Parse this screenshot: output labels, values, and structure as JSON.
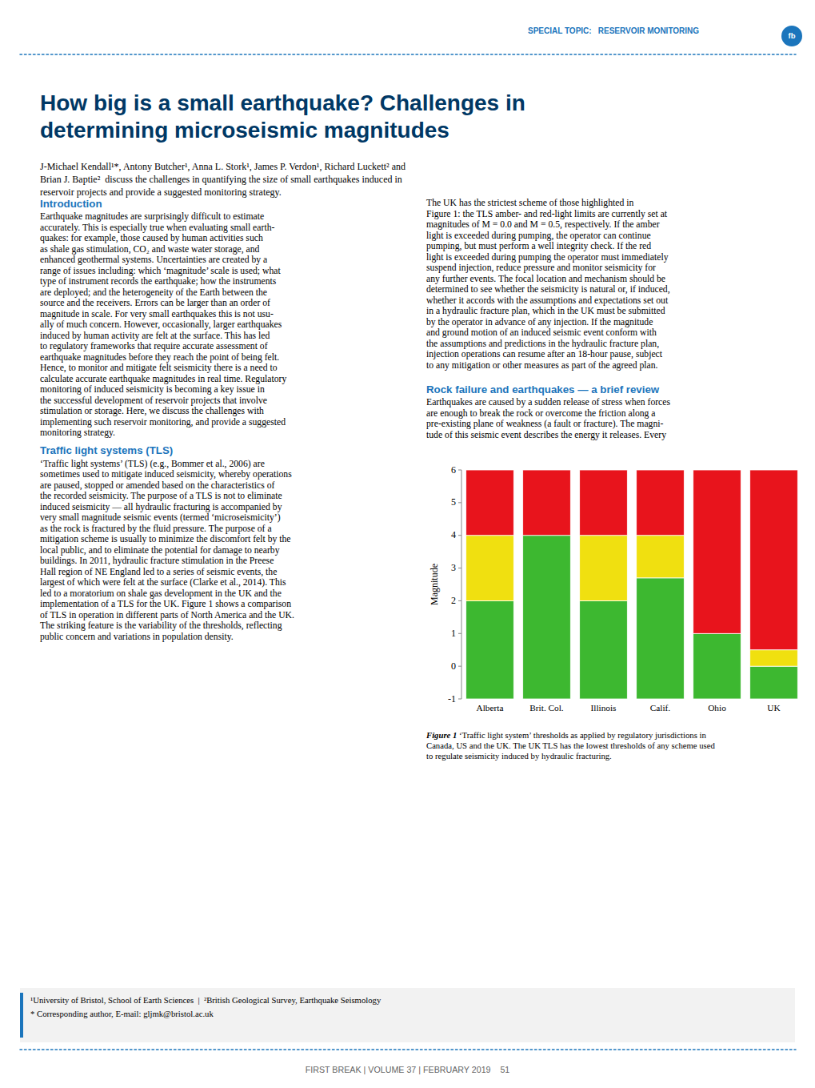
{
  "chart_data": {
    "type": "bar",
    "categories": [
      "Alberta",
      "Brit. Col.",
      "Illinois",
      "Calif.",
      "Ohio",
      "UK"
    ],
    "series": [
      {
        "color": "#3db830",
        "base": [
          -1,
          -1,
          -1,
          -1,
          -1,
          -1
        ],
        "values": [
          2.0,
          4.0,
          2.0,
          2.7,
          1.0,
          0.0
        ]
      },
      {
        "color": "#f0e010",
        "base": [
          2.0,
          4.0,
          2.0,
          2.7,
          1.0,
          0.0
        ],
        "values": [
          4.0,
          4.0,
          4.0,
          4.0,
          1.0,
          0.5
        ]
      },
      {
        "color": "#e8141c",
        "base": [
          4.0,
          4.0,
          4.0,
          4.0,
          1.0,
          0.5
        ],
        "values": [
          6.0,
          6.0,
          6.0,
          6.0,
          6.0,
          6.0
        ]
      }
    ],
    "ylim": [
      -1,
      6
    ],
    "yticks": [
      -1,
      0,
      1,
      2,
      3,
      4,
      5,
      6
    ],
    "ylabel": "Magnitude",
    "grid": false
  },
  "page": {
    "header_label": "SPECIAL TOPIC:",
    "header_topic": " RESERVOIR MONITORING",
    "logo": "fb",
    "title": [
      "How big is a small earthquake? Challenges in",
      "determining microseismic magnitudes"
    ],
    "authors": [
      "J-Michael Kendall¹*, Antony Butcher¹, Anna L. Stork¹, James P. Verdon¹, Richard Luckett² and",
      "Brian J. Baptie²  discuss the challenges in quantifying the size of small earthquakes induced in",
      "reservoir projects and provide a suggested monitoring strategy."
    ],
    "section1_title": "Introduction",
    "section1_text": [
      "Earthquake magnitudes are surprisingly difficult to estimate",
      "accurately. This is especially true when evaluating small earth-",
      "quakes: for example, those caused by human activities such",
      "as shale gas stimulation, CO₂ and waste water storage, and",
      "enhanced geothermal systems. Uncertainties are created by a",
      "range of issues including: which ‘magnitude’ scale is used; what",
      "type of instrument records the earthquake; how the instruments",
      "are deployed; and the heterogeneity of the Earth between the",
      "source and the receivers. Errors can be larger than an order of",
      "magnitude in scale. For very small earthquakes this is not usu-",
      "ally of much concern. However, occasionally, larger earthquakes",
      "induced by human activity are felt at the surface. This has led",
      "to regulatory frameworks that require accurate assessment of",
      "earthquake magnitudes before they reach the point of being felt.",
      "Hence, to monitor and mitigate felt seismicity there is a need to",
      "calculate accurate earthquake magnitudes in real time. Regulatory",
      "monitoring of induced seismicity is becoming a key issue in",
      "the successful development of reservoir projects that involve",
      "stimulation or storage. Here, we discuss the challenges with",
      "implementing such reservoir monitoring, and provide a suggested",
      "monitoring strategy."
    ],
    "section2_title": "Traffic light systems (TLS)",
    "section2_text": [
      "‘Traffic light systems’ (TLS) (e.g., Bommer et al., 2006) are",
      "sometimes used to mitigate induced seismicity, whereby operations",
      "are paused, stopped or amended based on the characteristics of",
      "the recorded seismicity. The purpose of a TLS is not to eliminate",
      "induced seismicity — all hydraulic fracturing is accompanied by",
      "very small magnitude seismic events (termed ‘microseismicity’)",
      "as the rock is fractured by the fluid pressure. The purpose of a",
      "mitigation scheme is usually to minimize the discomfort felt by the",
      "local public, and to eliminate the potential for damage to nearby",
      "buildings. In 2011, hydraulic fracture stimulation in the Preese",
      "Hall region of NE England led to a series of seismic events, the",
      "largest of which were felt at the surface (Clarke et al., 2014). This",
      "led to a moratorium on shale gas development in the UK and the",
      "implementation of a TLS for the UK. Figure 1 shows a comparison",
      "of TLS in operation in different parts of North America and the UK.",
      "The striking feature is the variability of the thresholds, reflecting",
      "public concern and variations in population density."
    ],
    "section3_text": [
      "The UK has the strictest scheme of those highlighted in",
      "Figure 1: the TLS amber- and red-light limits are currently set at",
      "magnitudes of M = 0.0 and M = 0.5, respectively. If the amber",
      "light is exceeded during pumping, the operator can continue",
      "pumping, but must perform a well integrity check. If the red",
      "light is exceeded during pumping the operator must immediately",
      "suspend injection, reduce pressure and monitor seismicity for",
      "any further events. The focal location and mechanism should be",
      "determined to see whether the seismicity is natural or, if induced,",
      "whether it accords with the assumptions and expectations set out",
      "in a hydraulic fracture plan, which in the UK must be submitted",
      "by the operator in advance of any injection. If the magnitude",
      "and ground motion of an induced seismic event conform with",
      "the assumptions and predictions in the hydraulic fracture plan,",
      "injection operations can resume after an 18-hour pause, subject",
      "to any mitigation or other measures as part of the agreed plan."
    ],
    "section4_title": "Rock failure and earthquakes — a brief review",
    "section4_text": [
      "Earthquakes are caused by a sudden release of stress when forces",
      "are enough to break the rock or overcome the friction along a",
      "pre-existing plane of weakness (a fault or fracture). The magni-",
      "tude of this seismic event describes the energy it releases. Every"
    ],
    "caption_bold": "Figure 1",
    "caption_rest": [
      " ‘Traffic light system’ thresholds as applied by regulatory jurisdictions in",
      "Canada, US and the UK. The UK TLS has the lowest thresholds of any scheme used",
      "to regulate seismicity induced by hydraulic fracturing."
    ],
    "footer_affil": "¹University of Bristol, School of Earth Sciences  |  ²British Geological Survey, Earthquake Seismology",
    "footer_email": "* Corresponding author, E-mail: gljmk@bristol.ac.uk",
    "footer_page": "FIRST BREAK | VOLUME 37 | FEBRUARY 2019    51",
    "blue_color": "#1b75bc",
    "dark_blue": "#003865",
    "footer_bg": "#f2f2f2"
  }
}
